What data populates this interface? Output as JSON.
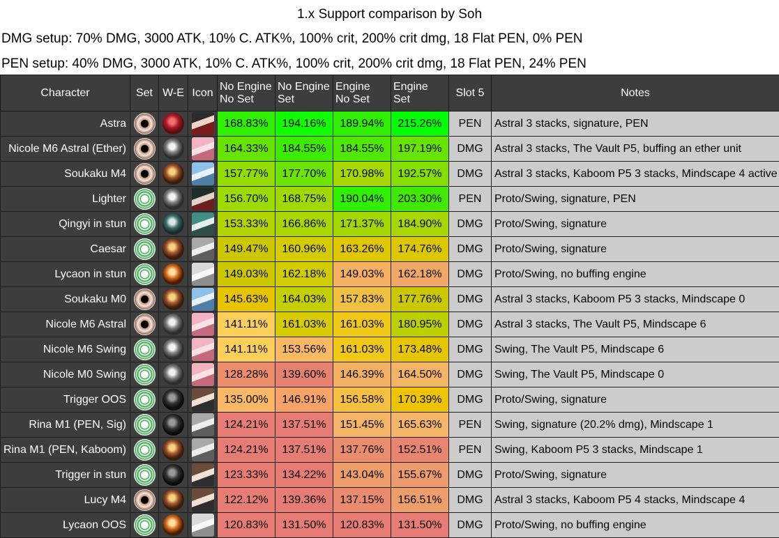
{
  "title": "1.x Support comparison by Soh",
  "setups": {
    "dmg": "DMG setup: 70% DMG, 3000 ATK, 10% C. ATK%, 100% crit, 200% crit dmg, 18 Flat PEN, 0% PEN",
    "pen": "PEN setup:  40% DMG, 3000 ATK, 10% C. ATK%, 100% crit, 200% crit dmg, 18 Flat PEN, 24% PEN"
  },
  "headers": {
    "character": "Character",
    "set": "Set",
    "we": "W-E",
    "icon": "Icon",
    "ne_ns_1": "No Engine",
    "ne_ns_2": "No Set",
    "ne_s_1": "No Engine",
    "ne_s_2": "Set",
    "e_ns_1": "Engine",
    "e_ns_2": "No Set",
    "e_s_1": "Engine",
    "e_s_2": "Set",
    "slot5": "Slot 5",
    "notes": "Notes"
  },
  "colors": {
    "header_bg": "#3d3d3d",
    "notes_bg": "#cccccc",
    "best": "#00ff00",
    "worst": "#e67c73"
  },
  "rows": [
    {
      "character": "Astra",
      "set_icon": "astral-set-icon",
      "we_icon": "red-w-engine-icon",
      "portrait": "astra-portrait-icon",
      "v": [
        "168.83%",
        "194.16%",
        "189.94%",
        "215.26%"
      ],
      "c": [
        "#2ef000",
        "#10ff00",
        "#2ef000",
        "#00ff00"
      ],
      "slot5": "PEN",
      "notes": "Astral 3 stacks, signature, PEN"
    },
    {
      "character": "Nicole M6 Astral (Ether)",
      "set_icon": "astral-set-icon",
      "we_icon": "grey-w-engine-icon",
      "portrait": "nicole-portrait-icon",
      "v": [
        "164.33%",
        "184.55%",
        "184.55%",
        "197.19%"
      ],
      "c": [
        "#66e400",
        "#3cec00",
        "#4fe800",
        "#66e400"
      ],
      "slot5": "DMG",
      "notes": "Astral 3 stacks, The Vault P5, buffing an ether unit"
    },
    {
      "character": "Soukaku M4",
      "set_icon": "astral-set-icon",
      "we_icon": "brown-w-engine-icon",
      "portrait": "soukaku-portrait-icon",
      "v": [
        "157.77%",
        "177.70%",
        "170.98%",
        "192.57%"
      ],
      "c": [
        "#94dc00",
        "#6ae400",
        "#a6d800",
        "#84de00"
      ],
      "slot5": "DMG",
      "notes": "Astral 3 stacks, Kaboom P5 3 stacks, Mindscape 4 active"
    },
    {
      "character": "Lighter",
      "set_icon": "proto-set-icon",
      "we_icon": "grey-w-engine-icon",
      "portrait": "lighter-portrait-icon",
      "v": [
        "156.70%",
        "168.75%",
        "190.04%",
        "203.30%"
      ],
      "c": [
        "#9cda00",
        "#a0d800",
        "#2ef000",
        "#40ea00"
      ],
      "slot5": "PEN",
      "notes": "Proto/Swing, signature, PEN"
    },
    {
      "character": "Qingyi in stun",
      "set_icon": "proto-set-icon",
      "we_icon": "teal-w-engine-icon",
      "portrait": "qingyi-portrait-icon",
      "v": [
        "153.33%",
        "166.86%",
        "171.37%",
        "184.90%"
      ],
      "c": [
        "#b2d400",
        "#aad600",
        "#a2d800",
        "#a8d600"
      ],
      "slot5": "DMG",
      "notes": "Proto/Swing, signature"
    },
    {
      "character": "Caesar",
      "set_icon": "proto-set-icon",
      "we_icon": "brown-w-engine-icon",
      "portrait": "caesar-portrait-icon",
      "v": [
        "149.47%",
        "160.96%",
        "163.26%",
        "174.76%"
      ],
      "c": [
        "#ccc800",
        "#d4cc00",
        "#e0c800",
        "#dcc800"
      ],
      "slot5": "DMG",
      "notes": "Proto/Swing, signature"
    },
    {
      "character": "Lycaon in stun",
      "set_icon": "proto-set-icon",
      "we_icon": "orange-w-engine-icon",
      "portrait": "lycaon-portrait-icon",
      "v": [
        "149.03%",
        "162.18%",
        "149.03%",
        "162.18%"
      ],
      "c": [
        "#ccc800",
        "#d0cc00",
        "#f5b061",
        "#f1a866"
      ],
      "slot5": "DMG",
      "notes": "Proto/Swing, no buffing engine"
    },
    {
      "character": "Soukaku M0",
      "set_icon": "astral-set-icon",
      "we_icon": "brown-w-engine-icon",
      "portrait": "soukaku-portrait-icon",
      "v": [
        "145.63%",
        "164.03%",
        "157.83%",
        "177.76%"
      ],
      "c": [
        "#e6c400",
        "#c4ce00",
        "#f2c040",
        "#ccc800"
      ],
      "slot5": "DMG",
      "notes": "Astral 3 stacks, Kaboom P5 3 stacks, Mindscape 0"
    },
    {
      "character": "Nicole M6 Astral",
      "set_icon": "astral-set-icon",
      "we_icon": "grey-w-engine-icon",
      "portrait": "nicole-portrait-icon",
      "v": [
        "141.11%",
        "161.03%",
        "161.03%",
        "180.95%"
      ],
      "c": [
        "#fccf5a",
        "#d6cc00",
        "#f0c818",
        "#bcd000"
      ],
      "slot5": "DMG",
      "notes": "Astral 3 stacks, The Vault P5, Mindscape 6"
    },
    {
      "character": "Nicole M6 Swing",
      "set_icon": "proto-set-icon",
      "we_icon": "grey-w-engine-icon",
      "portrait": "nicole-portrait-icon",
      "v": [
        "141.11%",
        "153.56%",
        "161.03%",
        "173.48%"
      ],
      "c": [
        "#fccf5a",
        "#f9b864",
        "#f0c818",
        "#e6c600"
      ],
      "slot5": "DMG",
      "notes": "Swing, The Vault P5, Mindscape 6"
    },
    {
      "character": "Nicole M0 Swing",
      "set_icon": "proto-set-icon",
      "we_icon": "grey-w-engine-icon",
      "portrait": "nicole-portrait-icon",
      "v": [
        "128.28%",
        "139.60%",
        "146.39%",
        "164.50%"
      ],
      "c": [
        "#ec8e6c",
        "#e68070",
        "#f3b063",
        "#f3b466"
      ],
      "slot5": "DMG",
      "notes": "Swing, The Vault P5, Mindscape 0"
    },
    {
      "character": "Trigger OOS",
      "set_icon": "proto-set-icon",
      "we_icon": "dark-w-engine-icon",
      "portrait": "trigger-portrait-icon",
      "v": [
        "135.00%",
        "146.91%",
        "156.58%",
        "170.39%"
      ],
      "c": [
        "#fab866",
        "#f7a267",
        "#f5c040",
        "#eec400"
      ],
      "slot5": "DMG",
      "notes": "Proto/Swing, signature"
    },
    {
      "character": "Rina M1 (PEN, Sig)",
      "set_icon": "proto-set-icon",
      "we_icon": "dark-w-engine-icon",
      "portrait": "rina-portrait-icon",
      "v": [
        "124.21%",
        "137.51%",
        "151.45%",
        "165.63%"
      ],
      "c": [
        "#e67c73",
        "#e67c73",
        "#f4b466",
        "#f4b666"
      ],
      "slot5": "PEN",
      "notes": "Swing, signature (20.2% dmg), Mindscape 1"
    },
    {
      "character": "Rina M1 (PEN, Kaboom)",
      "set_icon": "proto-set-icon",
      "we_icon": "brown-w-engine-icon",
      "portrait": "rina-portrait-icon",
      "v": [
        "124.21%",
        "137.51%",
        "137.76%",
        "152.51%"
      ],
      "c": [
        "#e67c73",
        "#e67c73",
        "#ea8c6e",
        "#e98470"
      ],
      "slot5": "PEN",
      "notes": "Swing, Kaboom P5 3 stacks, Mindscape 1"
    },
    {
      "character": "Trigger in stun",
      "set_icon": "proto-set-icon",
      "we_icon": "dark-w-engine-icon",
      "portrait": "trigger-portrait-icon",
      "v": [
        "123.33%",
        "134.22%",
        "143.04%",
        "155.67%"
      ],
      "c": [
        "#e67c73",
        "#e67c73",
        "#ef9e6a",
        "#ed9a6c"
      ],
      "slot5": "DMG",
      "notes": "Proto/Swing, signature"
    },
    {
      "character": "Lucy M4",
      "set_icon": "astral-set-icon",
      "we_icon": "brown-w-engine-icon",
      "portrait": "lucy-portrait-icon",
      "v": [
        "122.12%",
        "139.36%",
        "137.15%",
        "156.51%"
      ],
      "c": [
        "#e67c73",
        "#e67c73",
        "#ea8a6e",
        "#ee9e6a"
      ],
      "slot5": "DMG",
      "notes": "Astral 3 stacks, Kaboom P5 4 stacks, Mindscape 4"
    },
    {
      "character": "Lycaon OOS",
      "set_icon": "proto-set-icon",
      "we_icon": "orange-w-engine-icon",
      "portrait": "lycaon-portrait-icon",
      "v": [
        "120.83%",
        "131.50%",
        "120.83%",
        "131.50%"
      ],
      "c": [
        "#e67c73",
        "#e67c73",
        "#e67c73",
        "#e67c73"
      ],
      "slot5": "DMG",
      "notes": "Proto/Swing, no buffing engine"
    }
  ]
}
